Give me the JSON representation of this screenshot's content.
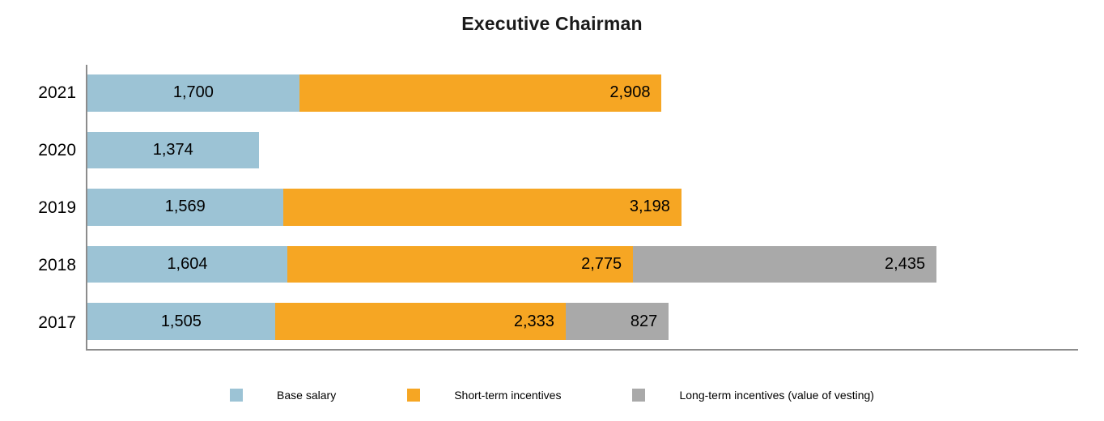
{
  "title": "Executive Chairman",
  "chart_data": {
    "type": "bar",
    "orientation": "horizontal",
    "stacked": true,
    "title": "Executive Chairman",
    "categories": [
      "2021",
      "2020",
      "2019",
      "2018",
      "2017"
    ],
    "series": [
      {
        "name": "Base salary",
        "color": "#9cc3d5",
        "values": [
          1700,
          1374,
          1569,
          1604,
          1505
        ]
      },
      {
        "name": "Short-term incentives",
        "color": "#f6a623",
        "values": [
          2908,
          null,
          3198,
          2775,
          2333
        ]
      },
      {
        "name": "Long-term incentives (value of vesting)",
        "color": "#a9a9a9",
        "values": [
          null,
          null,
          null,
          2435,
          827
        ]
      }
    ],
    "xlabel": "",
    "ylabel": "",
    "xlim": [
      0,
      7950
    ],
    "grid": false,
    "value_labels": "inside",
    "legend_position": "bottom"
  }
}
